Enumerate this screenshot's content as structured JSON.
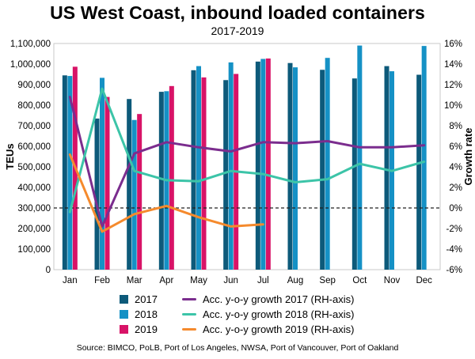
{
  "chart_data": {
    "type": "bar+line",
    "title": "US West Coast, inbound loaded containers",
    "subtitle": "2017-2019",
    "ylabel": "TEUs",
    "y2label": "Growth rate",
    "ylim": [
      0,
      1100000
    ],
    "y2lim": [
      -6,
      16
    ],
    "categories": [
      "Jan",
      "Feb",
      "Mar",
      "Apr",
      "May",
      "Jun",
      "Jul",
      "Aug",
      "Sep",
      "Oct",
      "Nov",
      "Dec"
    ],
    "y_ticks": [
      "0",
      "100,000",
      "200,000",
      "300,000",
      "400,000",
      "500,000",
      "600,000",
      "700,000",
      "800,000",
      "900,000",
      "1,000,000",
      "1,100,000"
    ],
    "y2_ticks": [
      "-6%",
      "-4%",
      "-2%",
      "0%",
      "2%",
      "4%",
      "6%",
      "8%",
      "10%",
      "12%",
      "14%",
      "16%"
    ],
    "bar_series": [
      {
        "name": "2017",
        "color": "#0d5a7a",
        "values": [
          945000,
          735000,
          830000,
          865000,
          970000,
          922000,
          1012000,
          1005000,
          972000,
          930000,
          990000,
          948000
        ]
      },
      {
        "name": "2018",
        "color": "#1591c5",
        "values": [
          942000,
          933000,
          728000,
          868000,
          990000,
          1008000,
          1025000,
          984000,
          1030000,
          1090000,
          965000,
          1088000
        ]
      },
      {
        "name": "2019",
        "color": "#d81367",
        "values": [
          987000,
          840000,
          757000,
          893000,
          935000,
          952000,
          1027000
        ]
      }
    ],
    "line_series": [
      {
        "name": "Acc. y-o-y growth 2017 (RH-axis)",
        "color": "#7b2d8e",
        "values": [
          10.8,
          -1.8,
          5.3,
          6.4,
          5.9,
          5.5,
          6.4,
          6.3,
          6.5,
          5.9,
          5.9,
          6.1
        ]
      },
      {
        "name": "Acc. y-o-y growth 2018 (RH-axis)",
        "color": "#3cc4a8",
        "values": [
          -0.4,
          11.6,
          3.6,
          2.7,
          2.6,
          3.6,
          3.3,
          2.5,
          2.8,
          4.3,
          3.6,
          4.5
        ]
      },
      {
        "name": "Acc. y-o-y growth 2019 (RH-axis)",
        "color": "#f58a2d",
        "values": [
          5.2,
          -2.3,
          -0.6,
          0.2,
          -0.9,
          -1.8,
          -1.6
        ]
      }
    ],
    "reference_line": 300000
  },
  "source": "Source: BIMCO, PoLB, Port of Los Angeles, NWSA, Port of Vancouver, Port of Oakland"
}
